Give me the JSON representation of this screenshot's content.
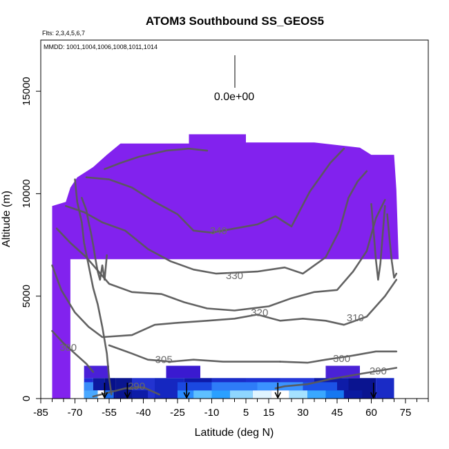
{
  "chart_data": {
    "type": "heatmap",
    "title": "ATOM3 Southbound SS_GEOS5",
    "annotations": {
      "flights": "Flts: 2,3,4,5,6,7",
      "dates": "MMDD: 1001,1004,1006,1008,1011,1014"
    },
    "xlabel": "Latitude (deg N)",
    "ylabel": "Altitude (m)",
    "xlim": [
      -85,
      85
    ],
    "ylim": [
      0,
      17500
    ],
    "x_ticks": [
      -85,
      -70,
      -55,
      -40,
      -25,
      -10,
      5,
      15,
      30,
      45,
      60,
      75
    ],
    "x_minor_ticks": [
      -80,
      -75,
      -65,
      -60,
      -50,
      -45,
      -35,
      -30,
      -20,
      -15,
      -5,
      0,
      10,
      20,
      25,
      35,
      40,
      50,
      55,
      65,
      70,
      80,
      85
    ],
    "y_ticks": [
      0,
      5000,
      10000,
      15000
    ],
    "legend": {
      "label": "0.0e+00",
      "placement": "top-center"
    },
    "background_color": "#8222ee",
    "curtain_top": [
      {
        "x": -80,
        "y": 9400
      },
      {
        "x": -74,
        "y": 9600
      },
      {
        "x": -72,
        "y": 10300
      },
      {
        "x": -69,
        "y": 10800
      },
      {
        "x": -62,
        "y": 11300
      },
      {
        "x": -56,
        "y": 11900
      },
      {
        "x": -50,
        "y": 12450
      },
      {
        "x": -20,
        "y": 12450
      },
      {
        "x": -20,
        "y": 12900
      },
      {
        "x": 5,
        "y": 12900
      },
      {
        "x": 5,
        "y": 12500
      },
      {
        "x": 35,
        "y": 12500
      },
      {
        "x": 55,
        "y": 12250
      },
      {
        "x": 60,
        "y": 11900
      },
      {
        "x": 70,
        "y": 11900
      },
      {
        "x": 71,
        "y": 10200
      },
      {
        "x": 72,
        "y": 6800
      }
    ],
    "curtain_bottom": [
      {
        "x": -72,
        "y": 6800
      },
      {
        "x": -72,
        "y": 0
      },
      {
        "x": -80,
        "y": 0
      },
      {
        "x": -80,
        "y": 9400
      }
    ],
    "boundary_layer_cells": [
      {
        "x0": -66,
        "x1": -62,
        "y0": 0,
        "y1": 1000,
        "color": "#1f2bd6"
      },
      {
        "x0": -62,
        "x1": -57,
        "y0": 0,
        "y1": 1000,
        "color": "#0d1aa0"
      },
      {
        "x0": -57,
        "x1": -52,
        "y0": 0,
        "y1": 1000,
        "color": "#06108a"
      },
      {
        "x0": -52,
        "x1": -45,
        "y0": 0,
        "y1": 1000,
        "color": "#0a1690"
      },
      {
        "x0": -45,
        "x1": -35,
        "y0": 0,
        "y1": 1000,
        "color": "#2233d0"
      },
      {
        "x0": -35,
        "x1": -22,
        "y0": 0,
        "y1": 1000,
        "color": "#1527c0"
      },
      {
        "x0": -22,
        "x1": -10,
        "y0": 0,
        "y1": 1000,
        "color": "#0d1aa8"
      },
      {
        "x0": -10,
        "x1": 5,
        "y0": 0,
        "y1": 1000,
        "color": "#1a2cc8"
      },
      {
        "x0": 5,
        "x1": 20,
        "y0": 0,
        "y1": 1000,
        "color": "#1c30d0"
      },
      {
        "x0": 20,
        "x1": 35,
        "y0": 0,
        "y1": 1000,
        "color": "#2537d8"
      },
      {
        "x0": 35,
        "x1": 50,
        "y0": 0,
        "y1": 1000,
        "color": "#0e1ca8"
      },
      {
        "x0": 50,
        "x1": 62,
        "y0": 0,
        "y1": 1000,
        "color": "#0a1490"
      },
      {
        "x0": 62,
        "x1": 70,
        "y0": 0,
        "y1": 1000,
        "color": "#1a2bc6"
      },
      {
        "x0": -66,
        "x1": -60,
        "y0": 0,
        "y1": 400,
        "color": "#4aa8ff"
      },
      {
        "x0": -60,
        "x1": -57,
        "y0": 0,
        "y1": 400,
        "color": "#ffffff"
      },
      {
        "x0": -57,
        "x1": -53,
        "y0": 0,
        "y1": 400,
        "color": "#1a70f0"
      },
      {
        "x0": -45,
        "x1": -38,
        "y0": 0,
        "y1": 400,
        "color": "#0d1ca8"
      },
      {
        "x0": -25,
        "x1": -18,
        "y0": 0,
        "y1": 400,
        "color": "#2a8cff"
      },
      {
        "x0": -18,
        "x1": -10,
        "y0": 0,
        "y1": 400,
        "color": "#5ec0ff"
      },
      {
        "x0": -10,
        "x1": -2,
        "y0": 0,
        "y1": 400,
        "color": "#2aa0ff"
      },
      {
        "x0": -2,
        "x1": 8,
        "y0": 0,
        "y1": 400,
        "color": "#8fd6ff"
      },
      {
        "x0": 8,
        "x1": 16,
        "y0": 0,
        "y1": 400,
        "color": "#dff4ff"
      },
      {
        "x0": 16,
        "x1": 24,
        "y0": 0,
        "y1": 400,
        "color": "#ffffff"
      },
      {
        "x0": 24,
        "x1": 32,
        "y0": 0,
        "y1": 400,
        "color": "#a5e2ff"
      },
      {
        "x0": 32,
        "x1": 40,
        "y0": 0,
        "y1": 400,
        "color": "#3aa8ff"
      },
      {
        "x0": 40,
        "x1": 48,
        "y0": 0,
        "y1": 400,
        "color": "#1678f0"
      },
      {
        "x0": 48,
        "x1": 56,
        "y0": 0,
        "y1": 400,
        "color": "#0a1aa0"
      },
      {
        "x0": -66,
        "x1": -62,
        "y0": 400,
        "y1": 800,
        "color": "#3a8cf8"
      },
      {
        "x0": -25,
        "x1": -10,
        "y0": 400,
        "y1": 800,
        "color": "#1a48e0"
      },
      {
        "x0": -10,
        "x1": 10,
        "y0": 400,
        "y1": 800,
        "color": "#2e7cf8"
      },
      {
        "x0": 10,
        "x1": 30,
        "y0": 400,
        "y1": 800,
        "color": "#3b92ff"
      },
      {
        "x0": 30,
        "x1": 45,
        "y0": 400,
        "y1": 800,
        "color": "#1c52e6"
      },
      {
        "x0": -66,
        "x1": -55,
        "y0": 1000,
        "y1": 1600,
        "color": "#4a20d8"
      },
      {
        "x0": -30,
        "x1": -15,
        "y0": 1000,
        "y1": 1600,
        "color": "#3a1ad0"
      },
      {
        "x0": 40,
        "x1": 55,
        "y0": 1000,
        "y1": 1600,
        "color": "#4a22d6"
      }
    ],
    "contours": [
      {
        "label": "290",
        "label_at": {
          "x": -43,
          "y": 600
        },
        "points": [
          {
            "x": -62,
            "y": 100
          },
          {
            "x": -55,
            "y": 300
          },
          {
            "x": -48,
            "y": 500
          },
          {
            "x": -40,
            "y": 550
          },
          {
            "x": -33,
            "y": 200
          }
        ]
      },
      {
        "label": "290",
        "label_at": {
          "x": 63,
          "y": 1350
        },
        "points": [
          {
            "x": 18,
            "y": 500
          },
          {
            "x": 22,
            "y": 600
          },
          {
            "x": 32,
            "y": 700
          },
          {
            "x": 42,
            "y": 950
          },
          {
            "x": 55,
            "y": 1200
          },
          {
            "x": 71,
            "y": 1500
          }
        ]
      },
      {
        "label": "300",
        "label_at": {
          "x": -73,
          "y": 2500
        },
        "points": [
          {
            "x": -80,
            "y": 3300
          },
          {
            "x": -75,
            "y": 2700
          },
          {
            "x": -70,
            "y": 2200
          },
          {
            "x": -65,
            "y": 1700
          },
          {
            "x": -62,
            "y": 1300
          }
        ]
      },
      {
        "label": "305",
        "label_at": {
          "x": -31,
          "y": 1900
        },
        "points": [
          {
            "x": -55,
            "y": 2600
          },
          {
            "x": -45,
            "y": 2200
          },
          {
            "x": -38,
            "y": 1900
          },
          {
            "x": -28,
            "y": 1800
          },
          {
            "x": -18,
            "y": 1900
          },
          {
            "x": -5,
            "y": 1800
          },
          {
            "x": 5,
            "y": 1800
          },
          {
            "x": 20,
            "y": 1800
          }
        ]
      },
      {
        "label": "300",
        "label_at": {
          "x": 47,
          "y": 1950
        },
        "points": [
          {
            "x": 20,
            "y": 1800
          },
          {
            "x": 32,
            "y": 1750
          },
          {
            "x": 40,
            "y": 1900
          },
          {
            "x": 52,
            "y": 2100
          },
          {
            "x": 62,
            "y": 2300
          },
          {
            "x": 71,
            "y": 2300
          }
        ]
      },
      {
        "label": "310",
        "label_at": {
          "x": 53,
          "y": 3950
        },
        "points": [
          {
            "x": -80,
            "y": 6500
          },
          {
            "x": -76,
            "y": 5300
          },
          {
            "x": -70,
            "y": 4200
          },
          {
            "x": -64,
            "y": 3500
          },
          {
            "x": -58,
            "y": 3000
          },
          {
            "x": -45,
            "y": 3100
          },
          {
            "x": -35,
            "y": 3600
          },
          {
            "x": -25,
            "y": 3700
          },
          {
            "x": -12,
            "y": 3800
          },
          {
            "x": 0,
            "y": 3900
          },
          {
            "x": 10,
            "y": 4100
          },
          {
            "x": 20,
            "y": 3800
          },
          {
            "x": 30,
            "y": 3900
          },
          {
            "x": 40,
            "y": 3800
          },
          {
            "x": 48,
            "y": 3600
          },
          {
            "x": 58,
            "y": 4000
          },
          {
            "x": 66,
            "y": 5000
          },
          {
            "x": 71,
            "y": 5800
          }
        ]
      },
      {
        "label": "320",
        "label_at": {
          "x": 11,
          "y": 4200
        },
        "points": [
          {
            "x": -78,
            "y": 8300
          },
          {
            "x": -72,
            "y": 7600
          },
          {
            "x": -65,
            "y": 6900
          },
          {
            "x": -55,
            "y": 5600
          },
          {
            "x": -45,
            "y": 5200
          },
          {
            "x": -32,
            "y": 5100
          },
          {
            "x": -22,
            "y": 4700
          },
          {
            "x": -12,
            "y": 4400
          },
          {
            "x": 0,
            "y": 4300
          },
          {
            "x": 15,
            "y": 4500
          },
          {
            "x": 25,
            "y": 4900
          },
          {
            "x": 35,
            "y": 5200
          },
          {
            "x": 45,
            "y": 5300
          },
          {
            "x": 52,
            "y": 6200
          },
          {
            "x": 58,
            "y": 7200
          },
          {
            "x": 62,
            "y": 8800
          },
          {
            "x": 66,
            "y": 9700
          }
        ]
      },
      {
        "label": "330",
        "label_at": {
          "x": 0,
          "y": 6000
        },
        "points": [
          {
            "x": -74,
            "y": 9400
          },
          {
            "x": -66,
            "y": 9100
          },
          {
            "x": -58,
            "y": 8600
          },
          {
            "x": -48,
            "y": 8200
          },
          {
            "x": -38,
            "y": 7300
          },
          {
            "x": -28,
            "y": 6700
          },
          {
            "x": -18,
            "y": 6300
          },
          {
            "x": -8,
            "y": 6100
          },
          {
            "x": 10,
            "y": 6200
          },
          {
            "x": 22,
            "y": 6400
          },
          {
            "x": 30,
            "y": 6100
          },
          {
            "x": 40,
            "y": 6900
          },
          {
            "x": 46,
            "y": 8200
          },
          {
            "x": 50,
            "y": 9800
          },
          {
            "x": 54,
            "y": 10600
          },
          {
            "x": 58,
            "y": 11100
          }
        ]
      },
      {
        "label": "340",
        "label_at": {
          "x": -7,
          "y": 8200
        },
        "points": [
          {
            "x": -65,
            "y": 10800
          },
          {
            "x": -55,
            "y": 10700
          },
          {
            "x": -45,
            "y": 10300
          },
          {
            "x": -35,
            "y": 9600
          },
          {
            "x": -25,
            "y": 9000
          },
          {
            "x": -18,
            "y": 8200
          },
          {
            "x": -10,
            "y": 8100
          },
          {
            "x": 0,
            "y": 8300
          },
          {
            "x": 10,
            "y": 8500
          },
          {
            "x": 18,
            "y": 8900
          },
          {
            "x": 25,
            "y": 8400
          },
          {
            "x": 33,
            "y": 10100
          },
          {
            "x": 42,
            "y": 11500
          },
          {
            "x": 48,
            "y": 12200
          }
        ]
      },
      {
        "label": "",
        "label_at": {
          "x": 0,
          "y": 0
        },
        "points": [
          {
            "x": -57,
            "y": 11200
          },
          {
            "x": -50,
            "y": 11500
          },
          {
            "x": -42,
            "y": 11800
          },
          {
            "x": -30,
            "y": 12100
          },
          {
            "x": -20,
            "y": 12200
          },
          {
            "x": -12,
            "y": 12100
          }
        ]
      },
      {
        "label": "",
        "label_at": {
          "x": 0,
          "y": 0
        },
        "points": [
          {
            "x": -70,
            "y": 10700
          },
          {
            "x": -69,
            "y": 9600
          },
          {
            "x": -67,
            "y": 8600
          },
          {
            "x": -66,
            "y": 7600
          },
          {
            "x": -64,
            "y": 6500
          },
          {
            "x": -62,
            "y": 5400
          },
          {
            "x": -60,
            "y": 4600
          },
          {
            "x": -58,
            "y": 3500
          },
          {
            "x": -56,
            "y": 2200
          },
          {
            "x": -55,
            "y": 1000
          },
          {
            "x": -54,
            "y": 200
          }
        ]
      },
      {
        "label": "",
        "label_at": {
          "x": 0,
          "y": 0
        },
        "points": [
          {
            "x": -67,
            "y": 9800
          },
          {
            "x": -65,
            "y": 9200
          },
          {
            "x": -64,
            "y": 8600
          },
          {
            "x": -63,
            "y": 8100
          },
          {
            "x": -62,
            "y": 7500
          },
          {
            "x": -61,
            "y": 6800
          },
          {
            "x": -60,
            "y": 6200
          },
          {
            "x": -59,
            "y": 5800
          },
          {
            "x": -58,
            "y": 6500
          },
          {
            "x": -57,
            "y": 5800
          },
          {
            "x": -56,
            "y": 7000
          }
        ]
      },
      {
        "label": "",
        "label_at": {
          "x": 0,
          "y": 0
        },
        "points": [
          {
            "x": 60,
            "y": 9500
          },
          {
            "x": 61,
            "y": 8200
          },
          {
            "x": 62,
            "y": 6800
          },
          {
            "x": 63,
            "y": 5800
          },
          {
            "x": 64,
            "y": 6600
          },
          {
            "x": 65,
            "y": 8000
          },
          {
            "x": 66,
            "y": 9400
          }
        ]
      },
      {
        "label": "",
        "label_at": {
          "x": 0,
          "y": 0
        },
        "points": [
          {
            "x": 67,
            "y": 9000
          },
          {
            "x": 68,
            "y": 7800
          },
          {
            "x": 69,
            "y": 6700
          },
          {
            "x": 70,
            "y": 5900
          },
          {
            "x": 71,
            "y": 6100
          }
        ]
      }
    ],
    "arrows": [
      -57,
      -47,
      -21,
      19,
      61
    ]
  }
}
